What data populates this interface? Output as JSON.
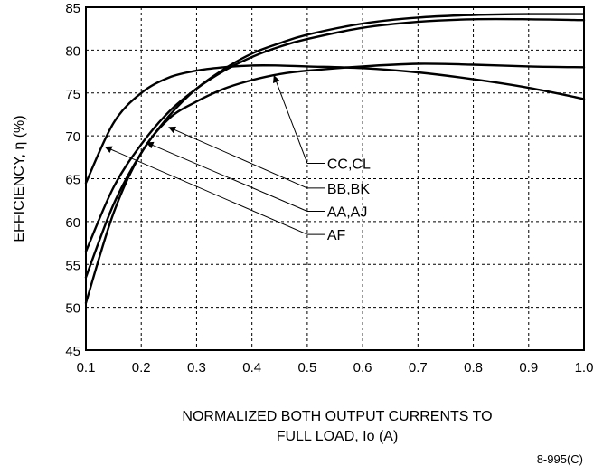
{
  "chart_data": {
    "type": "line",
    "ylabel": "EFFICIENCY, η (%)",
    "xlabel_line1": "NORMALIZED BOTH OUTPUT CURRENTS TO",
    "xlabel_line2": "FULL LOAD, Io (A)",
    "figure_id": "8-995(C)",
    "xlim": [
      0.1,
      1.0
    ],
    "ylim": [
      45,
      85
    ],
    "x_ticks": [
      "0.1",
      "0.2",
      "0.3",
      "0.4",
      "0.5",
      "0.6",
      "0.7",
      "0.8",
      "0.9",
      "1.0"
    ],
    "y_ticks": [
      "45",
      "50",
      "55",
      "60",
      "65",
      "70",
      "75",
      "80",
      "85"
    ],
    "grid": true,
    "series": [
      {
        "name": "CC,CL",
        "x": [
          0.1,
          0.15,
          0.2,
          0.25,
          0.3,
          0.35,
          0.4,
          0.45,
          0.5,
          0.6,
          0.7,
          0.8,
          0.9,
          1.0
        ],
        "y": [
          50.5,
          61.0,
          68.0,
          72.0,
          74.0,
          75.5,
          76.5,
          77.2,
          77.6,
          78.1,
          78.4,
          78.3,
          78.1,
          78.0
        ]
      },
      {
        "name": "BB,BK",
        "x": [
          0.1,
          0.15,
          0.2,
          0.25,
          0.3,
          0.35,
          0.4,
          0.45,
          0.5,
          0.6,
          0.7,
          0.8,
          0.9,
          1.0
        ],
        "y": [
          56.5,
          64.0,
          69.0,
          72.8,
          75.5,
          77.6,
          79.2,
          80.4,
          81.3,
          82.6,
          83.3,
          83.6,
          83.6,
          83.5
        ]
      },
      {
        "name": "AA,AJ",
        "x": [
          0.1,
          0.15,
          0.2,
          0.25,
          0.3,
          0.35,
          0.4,
          0.45,
          0.5,
          0.6,
          0.7,
          0.8,
          0.9,
          1.0
        ],
        "y": [
          53.5,
          62.0,
          68.0,
          72.3,
          75.5,
          77.8,
          79.6,
          80.8,
          81.8,
          83.1,
          83.8,
          84.1,
          84.2,
          84.2
        ]
      },
      {
        "name": "AF",
        "x": [
          0.1,
          0.15,
          0.2,
          0.25,
          0.3,
          0.35,
          0.4,
          0.45,
          0.5,
          0.6,
          0.7,
          0.8,
          0.9,
          1.0
        ],
        "y": [
          64.5,
          71.5,
          75.0,
          76.8,
          77.6,
          78.0,
          78.2,
          78.2,
          78.1,
          77.9,
          77.4,
          76.6,
          75.6,
          74.3
        ]
      }
    ],
    "annotations": [
      {
        "text": "CC,CL",
        "x": 0.5,
        "y": 66.8,
        "pointer_x": 0.44,
        "pointer_y": 77.0
      },
      {
        "text": "BB,BK",
        "x": 0.5,
        "y": 63.9,
        "pointer_x": 0.25,
        "pointer_y": 71.0
      },
      {
        "text": "AA,AJ",
        "x": 0.5,
        "y": 61.2,
        "pointer_x": 0.21,
        "pointer_y": 69.2
      },
      {
        "text": "AF",
        "x": 0.5,
        "y": 58.5,
        "pointer_x": 0.135,
        "pointer_y": 68.7
      }
    ]
  }
}
